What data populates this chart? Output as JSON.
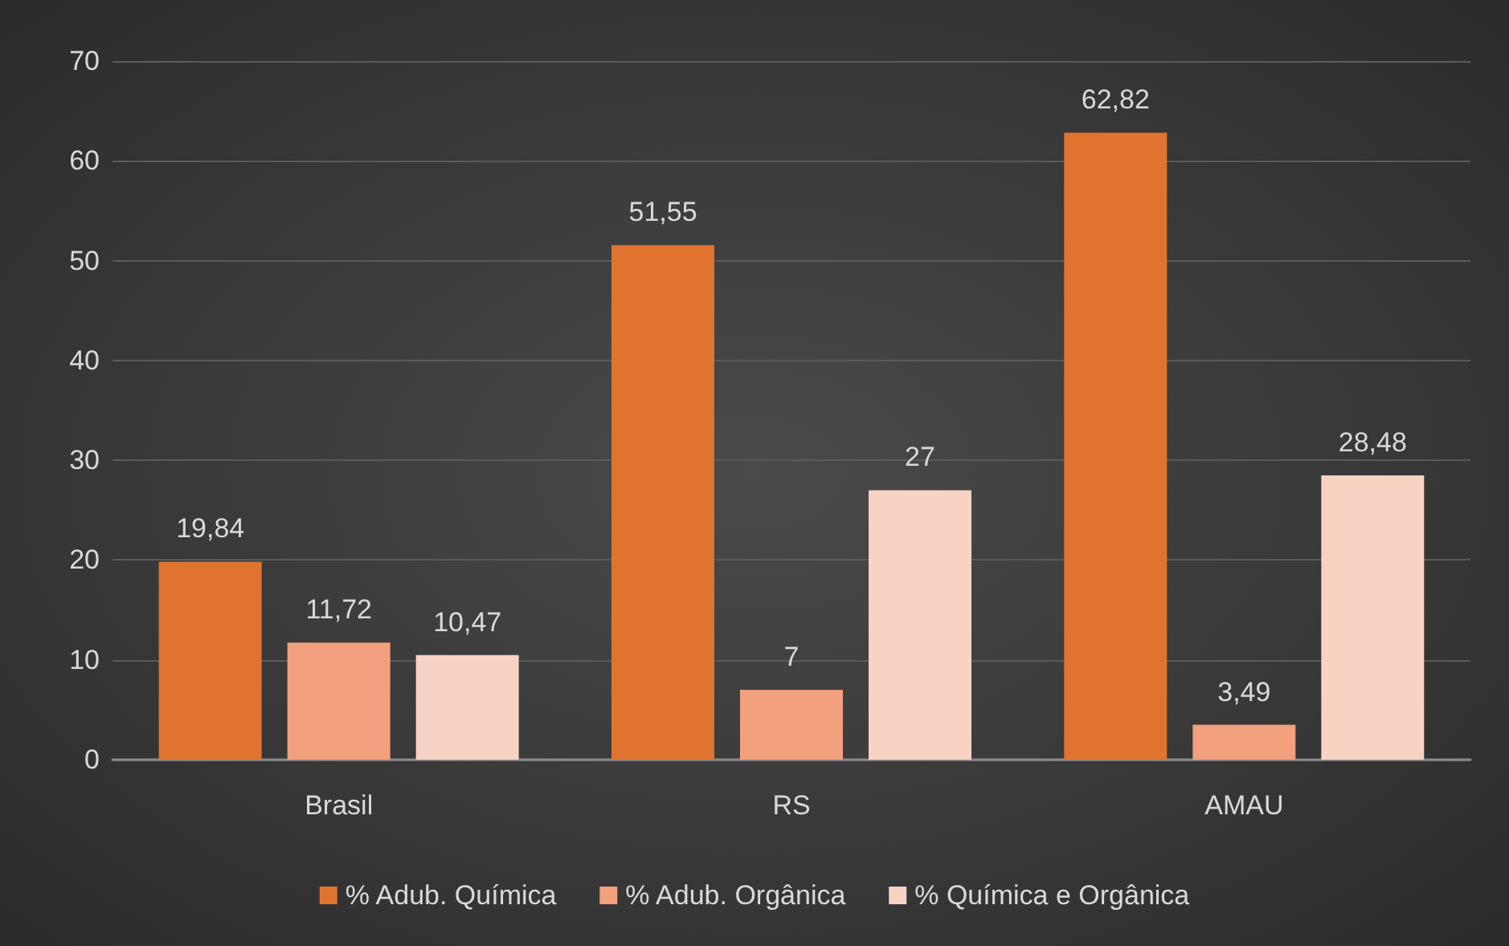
{
  "chart_data": {
    "type": "bar",
    "categories": [
      "Brasil",
      "RS",
      "AMAU"
    ],
    "series": [
      {
        "name": "% Adub. Química",
        "color": "#e0732f",
        "values": [
          19.84,
          51.55,
          62.82
        ],
        "value_labels": [
          "19,84",
          "51,55",
          "62,82"
        ]
      },
      {
        "name": "% Adub. Orgânica",
        "color": "#f2a07e",
        "values": [
          11.72,
          7,
          3.49
        ],
        "value_labels": [
          "11,72",
          "7",
          "3,49"
        ]
      },
      {
        "name": "% Química e Orgânica",
        "color": "#f8d3c4",
        "values": [
          10.47,
          27,
          28.48
        ],
        "value_labels": [
          "10,47",
          "27",
          "28,48"
        ]
      }
    ],
    "ylim": [
      0,
      70
    ],
    "yticks": [
      0,
      10,
      20,
      30,
      40,
      50,
      60,
      70
    ],
    "grid": "y",
    "legend": "bottom"
  }
}
